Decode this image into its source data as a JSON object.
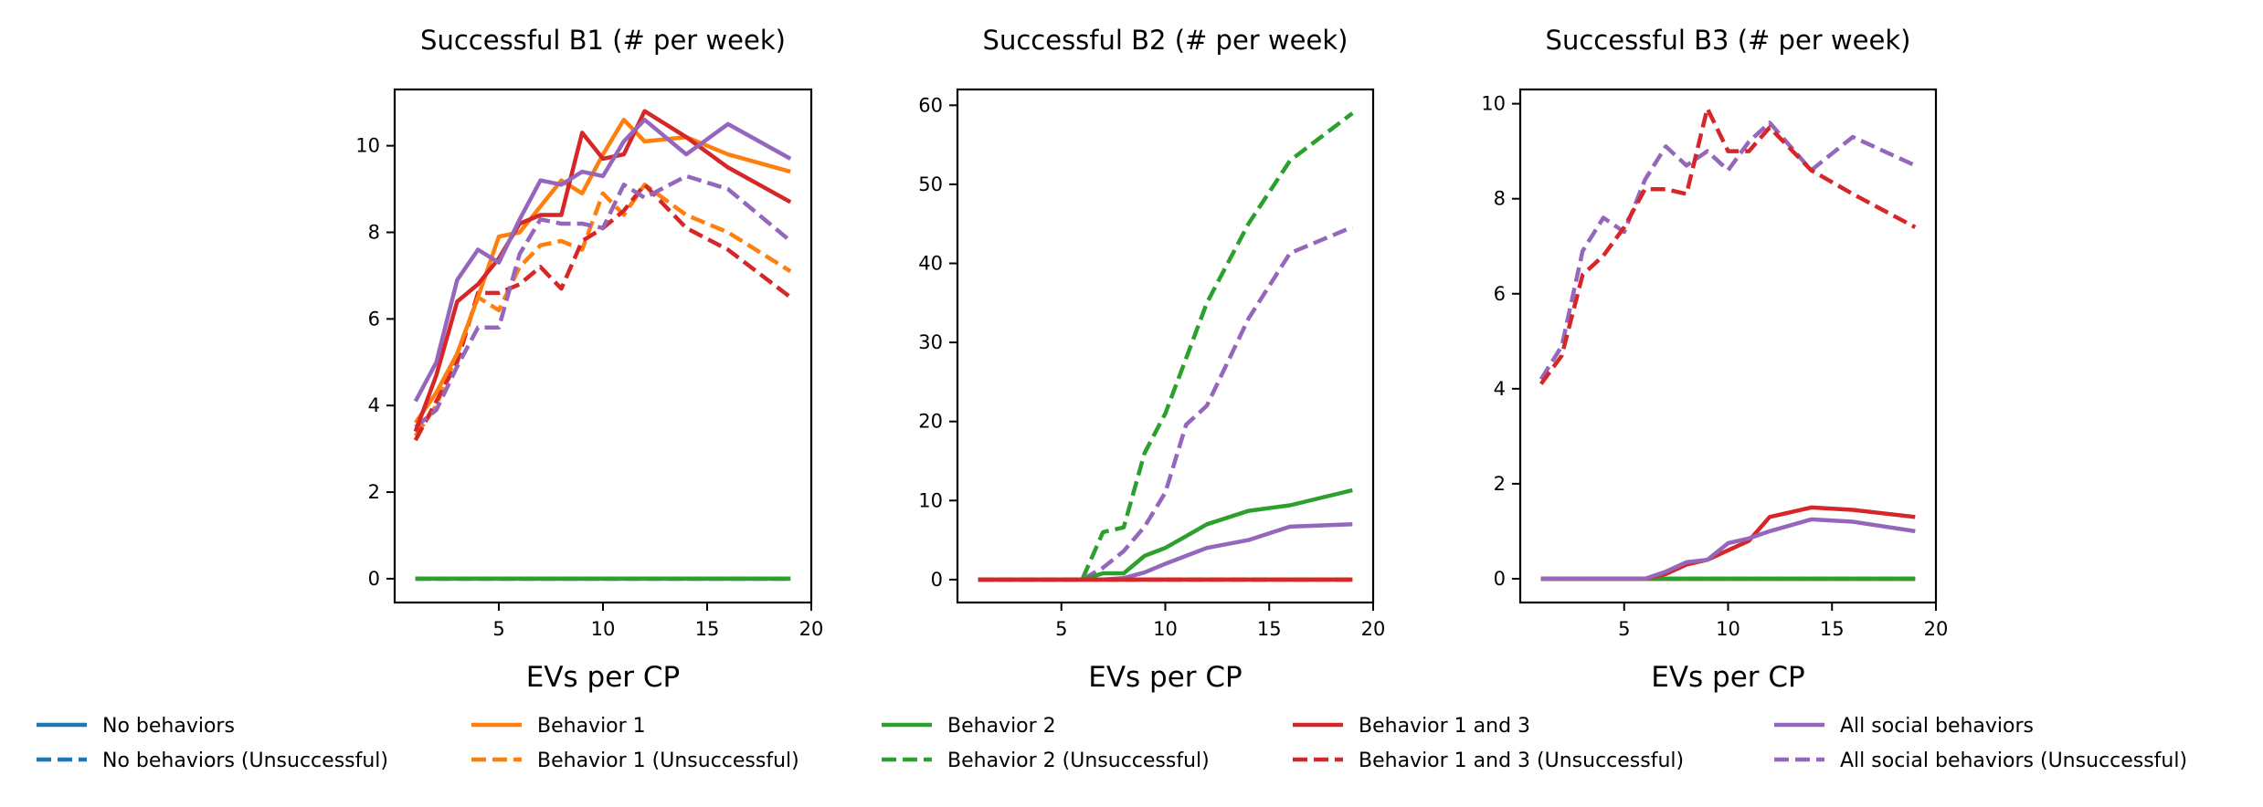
{
  "chart_data": [
    {
      "type": "line",
      "title": "Successful B1 (# per week)",
      "xlabel": "EVs per CP",
      "ylabel": "",
      "xlim": [
        0.0,
        20.0
      ],
      "ylim": [
        -0.55,
        11.3
      ],
      "xticks": [
        5,
        10,
        15,
        20
      ],
      "yticks": [
        0,
        2,
        4,
        6,
        8,
        10
      ],
      "series": [
        {
          "name": "No behaviors",
          "color": "#1f77b4",
          "style": "solid",
          "x": [
            1,
            19
          ],
          "y": [
            0,
            0
          ]
        },
        {
          "name": "No behaviors (Unsuccessful)",
          "color": "#1f77b4",
          "style": "dashed",
          "x": [
            1,
            19
          ],
          "y": [
            0,
            0
          ]
        },
        {
          "name": "Behavior 2",
          "color": "#2ca02c",
          "style": "solid",
          "x": [
            1,
            19
          ],
          "y": [
            0,
            0
          ]
        },
        {
          "name": "Behavior 2 (Unsuccessful)",
          "color": "#2ca02c",
          "style": "dashed",
          "x": [
            1,
            19
          ],
          "y": [
            0,
            0
          ]
        },
        {
          "name": "Behavior 1 (Unsuccessful)",
          "color": "#ff7f0e",
          "style": "dashed",
          "x": [
            1,
            2,
            3,
            4,
            5,
            6,
            7,
            8,
            9,
            10,
            11,
            12,
            14,
            16,
            19
          ],
          "y": [
            3.3,
            4.0,
            5.2,
            6.5,
            6.2,
            7.2,
            7.7,
            7.8,
            7.6,
            8.9,
            8.4,
            9.1,
            8.4,
            8.0,
            7.1
          ]
        },
        {
          "name": "Behavior 1 and 3 (Unsuccessful)",
          "color": "#d62728",
          "style": "dashed",
          "x": [
            1,
            2,
            3,
            4,
            5,
            6,
            7,
            8,
            9,
            10,
            11,
            12,
            14,
            16,
            19
          ],
          "y": [
            3.2,
            4.1,
            5.0,
            6.6,
            6.6,
            6.8,
            7.2,
            6.7,
            7.8,
            8.1,
            8.5,
            9.1,
            8.1,
            7.6,
            6.5
          ]
        },
        {
          "name": "All social behaviors (Unsuccessful)",
          "color": "#9467bd",
          "style": "dashed",
          "x": [
            1,
            2,
            3,
            4,
            5,
            6,
            7,
            8,
            9,
            10,
            11,
            12,
            14,
            16,
            19
          ],
          "y": [
            3.5,
            3.9,
            4.9,
            5.8,
            5.8,
            7.5,
            8.3,
            8.2,
            8.2,
            8.1,
            9.1,
            8.8,
            9.3,
            9.0,
            7.8
          ]
        },
        {
          "name": "Behavior 1",
          "color": "#ff7f0e",
          "style": "solid",
          "x": [
            1,
            2,
            3,
            4,
            5,
            6,
            7,
            8,
            9,
            10,
            11,
            12,
            14,
            16,
            19
          ],
          "y": [
            3.6,
            4.3,
            5.2,
            6.5,
            7.9,
            8.0,
            8.6,
            9.2,
            8.9,
            9.8,
            10.6,
            10.1,
            10.2,
            9.8,
            9.4
          ]
        },
        {
          "name": "Behavior 1 and 3",
          "color": "#d62728",
          "style": "solid",
          "x": [
            1,
            2,
            3,
            4,
            5,
            6,
            7,
            8,
            9,
            10,
            11,
            12,
            14,
            16,
            19
          ],
          "y": [
            3.4,
            4.7,
            6.4,
            6.8,
            7.4,
            8.2,
            8.4,
            8.4,
            10.3,
            9.7,
            9.8,
            10.8,
            10.2,
            9.5,
            8.7
          ]
        },
        {
          "name": "All social behaviors",
          "color": "#9467bd",
          "style": "solid",
          "x": [
            1,
            2,
            3,
            4,
            5,
            6,
            7,
            8,
            9,
            10,
            11,
            12,
            14,
            16,
            19
          ],
          "y": [
            4.1,
            5.0,
            6.9,
            7.6,
            7.3,
            8.3,
            9.2,
            9.1,
            9.4,
            9.3,
            10.1,
            10.6,
            9.8,
            10.5,
            9.7
          ]
        }
      ]
    },
    {
      "type": "line",
      "title": "Successful B2 (# per week)",
      "xlabel": "EVs per CP",
      "ylabel": "",
      "xlim": [
        0.0,
        20.0
      ],
      "ylim": [
        -2.9,
        62.0
      ],
      "xticks": [
        5,
        10,
        15,
        20
      ],
      "yticks": [
        0,
        10,
        20,
        30,
        40,
        50,
        60
      ],
      "series": [
        {
          "name": "No behaviors",
          "color": "#1f77b4",
          "style": "solid",
          "x": [
            1,
            19
          ],
          "y": [
            0,
            0
          ]
        },
        {
          "name": "No behaviors (Unsuccessful)",
          "color": "#1f77b4",
          "style": "dashed",
          "x": [
            1,
            19
          ],
          "y": [
            0,
            0
          ]
        },
        {
          "name": "Behavior 1",
          "color": "#ff7f0e",
          "style": "solid",
          "x": [
            1,
            19
          ],
          "y": [
            0,
            0
          ]
        },
        {
          "name": "Behavior 1 (Unsuccessful)",
          "color": "#ff7f0e",
          "style": "dashed",
          "x": [
            1,
            19
          ],
          "y": [
            0,
            0
          ]
        },
        {
          "name": "Behavior 2 (Unsuccessful)",
          "color": "#2ca02c",
          "style": "dashed",
          "x": [
            1,
            2,
            3,
            4,
            5,
            6,
            7,
            8,
            9,
            10,
            11,
            12,
            14,
            16,
            19
          ],
          "y": [
            0,
            0,
            0,
            0,
            0,
            0,
            6.0,
            6.6,
            16.0,
            21.0,
            28.0,
            35.0,
            45.0,
            53.0,
            59.0
          ]
        },
        {
          "name": "All social behaviors (Unsuccessful)",
          "color": "#9467bd",
          "style": "dashed",
          "x": [
            1,
            2,
            3,
            4,
            5,
            6,
            7,
            8,
            9,
            10,
            11,
            12,
            14,
            16,
            19
          ],
          "y": [
            0,
            0,
            0,
            0,
            0,
            0,
            1.5,
            3.6,
            6.7,
            11.0,
            19.6,
            22.0,
            33.0,
            41.3,
            44.6
          ]
        },
        {
          "name": "Behavior 2",
          "color": "#2ca02c",
          "style": "solid",
          "x": [
            1,
            2,
            3,
            4,
            5,
            6,
            7,
            8,
            9,
            10,
            11,
            12,
            14,
            16,
            19
          ],
          "y": [
            0,
            0,
            0,
            0,
            0,
            0,
            0.8,
            0.8,
            3.0,
            4.0,
            5.5,
            7.0,
            8.7,
            9.4,
            11.3
          ]
        },
        {
          "name": "All social behaviors",
          "color": "#9467bd",
          "style": "solid",
          "x": [
            1,
            2,
            3,
            4,
            5,
            6,
            7,
            8,
            9,
            10,
            11,
            12,
            14,
            16,
            19
          ],
          "y": [
            0,
            0,
            0,
            0,
            0,
            0,
            0,
            0.2,
            0.9,
            2.0,
            3.0,
            4.0,
            5.0,
            6.7,
            7.0
          ]
        },
        {
          "name": "Behavior 1 and 3",
          "color": "#d62728",
          "style": "solid",
          "x": [
            1,
            19
          ],
          "y": [
            0,
            0
          ]
        },
        {
          "name": "Behavior 1 and 3 (Unsuccessful)",
          "color": "#d62728",
          "style": "dashed",
          "x": [
            1,
            19
          ],
          "y": [
            0,
            0
          ]
        }
      ]
    },
    {
      "type": "line",
      "title": "Successful B3 (# per week)",
      "xlabel": "EVs per CP",
      "ylabel": "",
      "xlim": [
        0.0,
        20.0
      ],
      "ylim": [
        -0.5,
        10.3
      ],
      "xticks": [
        5,
        10,
        15,
        20
      ],
      "yticks": [
        0,
        2,
        4,
        6,
        8,
        10
      ],
      "series": [
        {
          "name": "No behaviors",
          "color": "#1f77b4",
          "style": "solid",
          "x": [
            1,
            19
          ],
          "y": [
            0,
            0
          ]
        },
        {
          "name": "No behaviors (Unsuccessful)",
          "color": "#1f77b4",
          "style": "dashed",
          "x": [
            1,
            19
          ],
          "y": [
            0,
            0
          ]
        },
        {
          "name": "Behavior 1",
          "color": "#ff7f0e",
          "style": "solid",
          "x": [
            1,
            19
          ],
          "y": [
            0,
            0
          ]
        },
        {
          "name": "Behavior 1 (Unsuccessful)",
          "color": "#ff7f0e",
          "style": "dashed",
          "x": [
            1,
            19
          ],
          "y": [
            0,
            0
          ]
        },
        {
          "name": "Behavior 2",
          "color": "#2ca02c",
          "style": "solid",
          "x": [
            1,
            19
          ],
          "y": [
            0,
            0
          ]
        },
        {
          "name": "Behavior 2 (Unsuccessful)",
          "color": "#2ca02c",
          "style": "dashed",
          "x": [
            1,
            19
          ],
          "y": [
            0,
            0
          ]
        },
        {
          "name": "All social behaviors (Unsuccessful)",
          "color": "#9467bd",
          "style": "dashed",
          "x": [
            1,
            2,
            3,
            4,
            5,
            6,
            7,
            8,
            9,
            10,
            11,
            12,
            14,
            16,
            19
          ],
          "y": [
            4.2,
            4.9,
            6.9,
            7.6,
            7.3,
            8.4,
            9.1,
            8.7,
            9.0,
            8.6,
            9.2,
            9.6,
            8.6,
            9.3,
            8.7
          ]
        },
        {
          "name": "Behavior 1 and 3 (Unsuccessful)",
          "color": "#d62728",
          "style": "dashed",
          "x": [
            1,
            2,
            3,
            4,
            5,
            6,
            7,
            8,
            9,
            10,
            11,
            12,
            14,
            16,
            19
          ],
          "y": [
            4.1,
            4.7,
            6.4,
            6.8,
            7.4,
            8.2,
            8.2,
            8.1,
            9.9,
            9.0,
            9.0,
            9.5,
            8.6,
            8.1,
            7.4
          ]
        },
        {
          "name": "Behavior 1 and 3",
          "color": "#d62728",
          "style": "solid",
          "x": [
            1,
            2,
            3,
            4,
            5,
            6,
            7,
            8,
            9,
            10,
            11,
            12,
            14,
            16,
            19
          ],
          "y": [
            0,
            0,
            0,
            0,
            0,
            0,
            0.1,
            0.3,
            0.4,
            0.6,
            0.8,
            1.3,
            1.5,
            1.45,
            1.3
          ]
        },
        {
          "name": "All social behaviors",
          "color": "#9467bd",
          "style": "solid",
          "x": [
            1,
            2,
            3,
            4,
            5,
            6,
            7,
            8,
            9,
            10,
            11,
            12,
            14,
            16,
            19
          ],
          "y": [
            0,
            0,
            0,
            0,
            0,
            0,
            0.15,
            0.35,
            0.4,
            0.75,
            0.85,
            1.0,
            1.25,
            1.2,
            1.0
          ]
        }
      ]
    }
  ],
  "legend": {
    "placement": "bottom",
    "items": [
      {
        "label": "No behaviors",
        "color": "#1f77b4",
        "style": "solid"
      },
      {
        "label": "No behaviors (Unsuccessful)",
        "color": "#1f77b4",
        "style": "dashed"
      },
      {
        "label": "Behavior 1",
        "color": "#ff7f0e",
        "style": "solid"
      },
      {
        "label": "Behavior 1 (Unsuccessful)",
        "color": "#ff7f0e",
        "style": "dashed"
      },
      {
        "label": "Behavior 2",
        "color": "#2ca02c",
        "style": "solid"
      },
      {
        "label": "Behavior 2 (Unsuccessful)",
        "color": "#2ca02c",
        "style": "dashed"
      },
      {
        "label": "Behavior 1 and 3",
        "color": "#d62728",
        "style": "solid"
      },
      {
        "label": "Behavior 1 and 3 (Unsuccessful)",
        "color": "#d62728",
        "style": "dashed"
      },
      {
        "label": "All social behaviors",
        "color": "#9467bd",
        "style": "solid"
      },
      {
        "label": "All social behaviors (Unsuccessful)",
        "color": "#9467bd",
        "style": "dashed"
      }
    ]
  }
}
